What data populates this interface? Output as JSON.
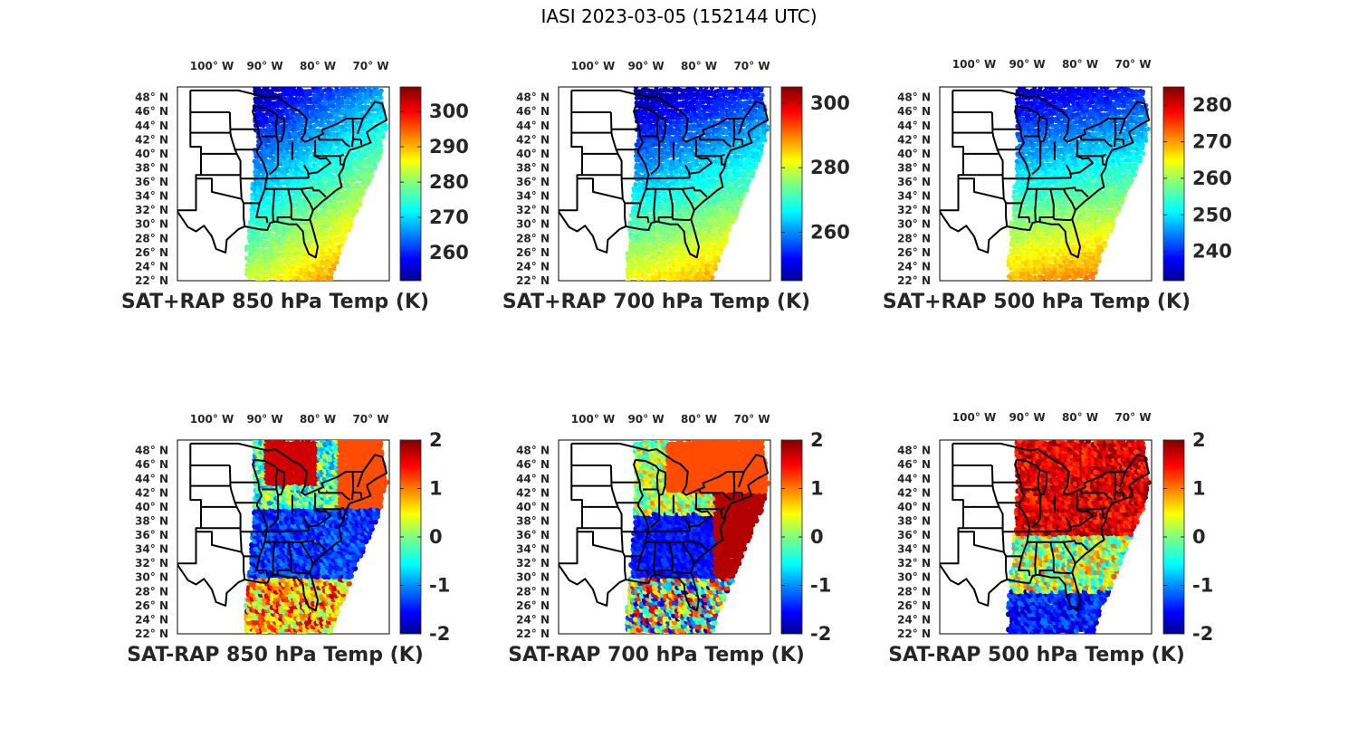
{
  "figure_title": "IASI 2023-03-05 (152144 UTC)",
  "colormap": "jet",
  "lon_ticks": [
    "100° W",
    "90° W",
    "80° W",
    "70° W"
  ],
  "lat_ticks": [
    "48° N",
    "46° N",
    "44° N",
    "42° N",
    "40° N",
    "38° N",
    "36° N",
    "34° N",
    "32° N",
    "30° N",
    "28° N",
    "26° N",
    "24° N",
    "22° N"
  ],
  "map_extent": {
    "lon": [
      -106.5,
      -66.5
    ],
    "lat": [
      22,
      49.5
    ]
  },
  "panels": [
    {
      "id": "p1",
      "title": "SAT+RAP 850 hPa Temp (K)",
      "field": "850 hPa Temp",
      "kind": "sum",
      "cbar_range": [
        252,
        307
      ],
      "cbar_ticks": [
        "260",
        "270",
        "280",
        "290",
        "300"
      ],
      "cbar_values": [
        260,
        270,
        280,
        290,
        300
      ]
    },
    {
      "id": "p2",
      "title": "SAT+RAP 700 hPa Temp (K)",
      "field": "700 hPa Temp",
      "kind": "sum",
      "cbar_range": [
        245,
        305
      ],
      "cbar_ticks": [
        "260",
        "280",
        "300"
      ],
      "cbar_values": [
        260,
        280,
        300
      ]
    },
    {
      "id": "p3",
      "title": "SAT+RAP 500 hPa Temp (K)",
      "field": "500 hPa Temp",
      "kind": "sum",
      "cbar_range": [
        232,
        285
      ],
      "cbar_ticks": [
        "240",
        "250",
        "260",
        "270",
        "280"
      ],
      "cbar_values": [
        240,
        250,
        260,
        270,
        280
      ]
    },
    {
      "id": "p4",
      "title": "SAT-RAP 850 hPa Temp (K)",
      "field": "850 hPa Temp",
      "kind": "diff",
      "cbar_range": [
        -2,
        2
      ],
      "cbar_ticks": [
        "-2",
        "-1",
        "0",
        "1",
        "2"
      ],
      "cbar_values": [
        -2,
        -1,
        0,
        1,
        2
      ]
    },
    {
      "id": "p5",
      "title": "SAT-RAP 700 hPa Temp (K)",
      "field": "700 hPa Temp",
      "kind": "diff",
      "cbar_range": [
        -2,
        2
      ],
      "cbar_ticks": [
        "-2",
        "-1",
        "0",
        "1",
        "2"
      ],
      "cbar_values": [
        -2,
        -1,
        0,
        1,
        2
      ]
    },
    {
      "id": "p6",
      "title": "SAT-RAP 500 hPa Temp (K)",
      "field": "500 hPa Temp",
      "kind": "diff",
      "cbar_range": [
        -2,
        2
      ],
      "cbar_ticks": [
        "-2",
        "-1",
        "0",
        "1",
        "2"
      ],
      "cbar_values": [
        -2,
        -1,
        0,
        1,
        2
      ]
    }
  ]
}
